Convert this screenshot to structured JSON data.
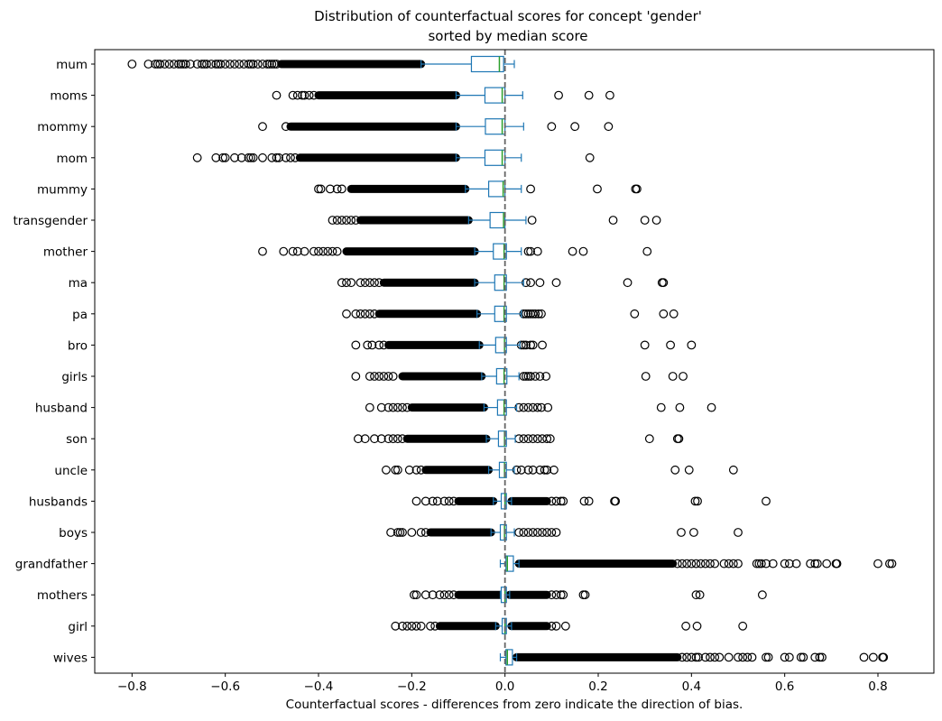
{
  "chart_data": {
    "type": "boxplot",
    "orientation": "horizontal",
    "title": "Distribution of counterfactual scores for concept 'gender'",
    "subtitle": "sorted by median score",
    "xlabel": "Counterfactual scores - differences from zero indicate the direction of bias.",
    "ylabel": "",
    "xlim": [
      -0.88,
      0.92
    ],
    "xticks": [
      -0.8,
      -0.6,
      -0.4,
      -0.2,
      0.0,
      0.2,
      0.4,
      0.6,
      0.8
    ],
    "xtick_labels": [
      "−0.8",
      "−0.6",
      "−0.4",
      "−0.2",
      "0.0",
      "0.2",
      "0.4",
      "0.6",
      "0.8"
    ],
    "reference_line": 0.0,
    "grid": false,
    "colors": {
      "box": "#1f77b4",
      "median": "#2ca02c",
      "reference": "#666666",
      "flier": "#000000"
    },
    "categories": [
      "mum",
      "moms",
      "mommy",
      "mom",
      "mummy",
      "transgender",
      "mother",
      "ma",
      "pa",
      "bro",
      "girls",
      "husband",
      "son",
      "uncle",
      "husbands",
      "boys",
      "grandfather",
      "mothers",
      "girl",
      "wives"
    ],
    "series": [
      {
        "category": "mum",
        "whislo": -0.18,
        "q1": -0.072,
        "median": -0.012,
        "q3": -0.003,
        "whishi": 0.02,
        "dense_low": [
          -0.48,
          -0.18
        ],
        "dense_high": null,
        "fliers": [
          -0.8,
          -0.765,
          -0.75,
          -0.745,
          -0.74,
          -0.73,
          -0.72,
          -0.71,
          -0.7,
          -0.695,
          -0.69,
          -0.685,
          -0.675,
          -0.66,
          -0.65,
          -0.645,
          -0.64,
          -0.63,
          -0.62,
          -0.615,
          -0.61,
          -0.6,
          -0.59,
          -0.58,
          -0.57,
          -0.56,
          -0.55,
          -0.545,
          -0.54,
          -0.53,
          -0.52,
          -0.51,
          -0.505,
          -0.5,
          -0.495,
          -0.49
        ]
      },
      {
        "category": "moms",
        "whislo": -0.105,
        "q1": -0.043,
        "median": -0.006,
        "q3": 0.0,
        "whishi": 0.038,
        "dense_low": [
          -0.4,
          -0.105
        ],
        "dense_high": null,
        "fliers": [
          -0.49,
          -0.455,
          -0.445,
          -0.435,
          -0.43,
          -0.42,
          -0.41,
          0.115,
          0.18,
          0.225
        ]
      },
      {
        "category": "mommy",
        "whislo": -0.105,
        "q1": -0.042,
        "median": -0.006,
        "q3": 0.0,
        "whishi": 0.04,
        "dense_low": [
          -0.46,
          -0.105
        ],
        "dense_high": null,
        "fliers": [
          -0.52,
          -0.47,
          0.1,
          0.15,
          0.222
        ]
      },
      {
        "category": "mom",
        "whislo": -0.105,
        "q1": -0.043,
        "median": -0.006,
        "q3": 0.0,
        "whishi": 0.035,
        "dense_low": [
          -0.44,
          -0.105
        ],
        "dense_high": null,
        "fliers": [
          -0.66,
          -0.62,
          -0.605,
          -0.6,
          -0.58,
          -0.565,
          -0.55,
          -0.545,
          -0.54,
          -0.52,
          -0.5,
          -0.49,
          -0.485,
          -0.47,
          -0.46,
          -0.45,
          0.182
        ]
      },
      {
        "category": "mummy",
        "whislo": -0.085,
        "q1": -0.035,
        "median": -0.004,
        "q3": 0.0,
        "whishi": 0.035,
        "dense_low": [
          -0.33,
          -0.085
        ],
        "dense_high": null,
        "fliers": [
          -0.4,
          -0.395,
          -0.375,
          -0.36,
          -0.35,
          0.055,
          0.198,
          0.28,
          0.283
        ]
      },
      {
        "category": "transgender",
        "whislo": -0.078,
        "q1": -0.032,
        "median": -0.003,
        "q3": 0.0,
        "whishi": 0.045,
        "dense_low": [
          -0.31,
          -0.078
        ],
        "dense_high": null,
        "fliers": [
          -0.37,
          -0.36,
          -0.35,
          -0.34,
          -0.33,
          -0.32,
          0.058,
          0.232,
          0.3,
          0.325
        ]
      },
      {
        "category": "mother",
        "whislo": -0.065,
        "q1": -0.025,
        "median": -0.002,
        "q3": 0.003,
        "whishi": 0.035,
        "dense_low": [
          -0.34,
          -0.065
        ],
        "dense_high": null,
        "fliers": [
          -0.52,
          -0.475,
          -0.455,
          -0.445,
          -0.43,
          -0.41,
          -0.4,
          -0.39,
          -0.38,
          -0.37,
          -0.36,
          0.05,
          0.055,
          0.07,
          0.145,
          0.168,
          0.305
        ]
      },
      {
        "category": "ma",
        "whislo": -0.065,
        "q1": -0.022,
        "median": -0.002,
        "q3": 0.003,
        "whishi": 0.04,
        "dense_low": [
          -0.26,
          -0.065
        ],
        "dense_high": null,
        "fliers": [
          -0.35,
          -0.34,
          -0.33,
          -0.31,
          -0.3,
          -0.29,
          -0.28,
          -0.27,
          0.045,
          0.055,
          0.075,
          0.11,
          0.263,
          0.337,
          0.34
        ]
      },
      {
        "category": "pa",
        "whislo": -0.06,
        "q1": -0.022,
        "median": -0.002,
        "q3": 0.003,
        "whishi": 0.035,
        "dense_low": [
          -0.27,
          -0.06
        ],
        "dense_high": null,
        "fliers": [
          -0.34,
          -0.32,
          -0.31,
          -0.3,
          -0.29,
          -0.28,
          0.04,
          0.045,
          0.05,
          0.055,
          0.06,
          0.065,
          0.072,
          0.078,
          0.278,
          0.34,
          0.362
        ]
      },
      {
        "category": "bro",
        "whislo": -0.055,
        "q1": -0.02,
        "median": -0.001,
        "q3": 0.003,
        "whishi": 0.032,
        "dense_low": [
          -0.25,
          -0.055
        ],
        "dense_high": null,
        "fliers": [
          -0.32,
          -0.295,
          -0.285,
          -0.27,
          -0.26,
          0.035,
          0.04,
          0.045,
          0.055,
          0.06,
          0.08,
          0.3,
          0.355,
          0.4
        ]
      },
      {
        "category": "girls",
        "whislo": -0.05,
        "q1": -0.018,
        "median": -0.002,
        "q3": 0.004,
        "whishi": 0.03,
        "dense_low": [
          -0.22,
          -0.05
        ],
        "dense_high": null,
        "fliers": [
          -0.32,
          -0.29,
          -0.28,
          -0.27,
          -0.26,
          -0.25,
          -0.24,
          0.04,
          0.045,
          0.05,
          0.055,
          0.065,
          0.075,
          0.088,
          0.302,
          0.36,
          0.382
        ]
      },
      {
        "category": "husband",
        "whislo": -0.045,
        "q1": -0.016,
        "median": -0.002,
        "q3": 0.003,
        "whishi": 0.025,
        "dense_low": [
          -0.2,
          -0.045
        ],
        "dense_high": null,
        "fliers": [
          -0.29,
          -0.265,
          -0.25,
          -0.24,
          -0.23,
          -0.22,
          -0.21,
          0.03,
          0.04,
          0.05,
          0.06,
          0.07,
          0.078,
          0.092,
          0.335,
          0.375,
          0.443
        ]
      },
      {
        "category": "son",
        "whislo": -0.04,
        "q1": -0.014,
        "median": -0.001,
        "q3": 0.003,
        "whishi": 0.022,
        "dense_low": [
          -0.21,
          -0.04
        ],
        "dense_high": null,
        "fliers": [
          -0.315,
          -0.3,
          -0.28,
          -0.265,
          -0.25,
          -0.24,
          -0.23,
          -0.22,
          0.03,
          0.04,
          0.05,
          0.06,
          0.07,
          0.08,
          0.09,
          0.097,
          0.31,
          0.37,
          0.373
        ]
      },
      {
        "category": "uncle",
        "whislo": -0.035,
        "q1": -0.012,
        "median": -0.001,
        "q3": 0.003,
        "whishi": 0.02,
        "dense_low": [
          -0.17,
          -0.035
        ],
        "dense_high": null,
        "fliers": [
          -0.255,
          -0.235,
          -0.23,
          -0.205,
          -0.19,
          -0.18,
          0.025,
          0.035,
          0.05,
          0.06,
          0.075,
          0.085,
          0.09,
          0.105,
          0.365,
          0.395,
          0.49
        ]
      },
      {
        "category": "husbands",
        "whislo": -0.025,
        "q1": -0.008,
        "median": 0.0,
        "q3": 0.003,
        "whishi": 0.014,
        "dense_low": [
          -0.1,
          -0.025
        ],
        "dense_high": [
          0.014,
          0.09
        ],
        "fliers": [
          -0.19,
          -0.17,
          -0.155,
          -0.145,
          -0.13,
          -0.12,
          -0.11,
          0.1,
          0.11,
          0.12,
          0.125,
          0.17,
          0.18,
          0.235,
          0.237,
          0.408,
          0.413,
          0.56
        ]
      },
      {
        "category": "boys",
        "whislo": -0.03,
        "q1": -0.01,
        "median": -0.001,
        "q3": 0.003,
        "whishi": 0.02,
        "dense_low": [
          -0.16,
          -0.03
        ],
        "dense_high": null,
        "fliers": [
          -0.245,
          -0.23,
          -0.225,
          -0.22,
          -0.2,
          -0.18,
          -0.17,
          0.03,
          0.04,
          0.05,
          0.06,
          0.07,
          0.08,
          0.09,
          0.1,
          0.11,
          0.378,
          0.405,
          0.5
        ]
      },
      {
        "category": "grandfather",
        "whislo": -0.01,
        "q1": 0.002,
        "median": 0.005,
        "q3": 0.018,
        "whishi": 0.03,
        "dense_low": null,
        "dense_high": [
          0.03,
          0.36
        ],
        "fliers": [
          0.37,
          0.38,
          0.39,
          0.4,
          0.41,
          0.42,
          0.43,
          0.44,
          0.45,
          0.47,
          0.48,
          0.49,
          0.5,
          0.54,
          0.545,
          0.55,
          0.56,
          0.575,
          0.6,
          0.61,
          0.625,
          0.655,
          0.665,
          0.67,
          0.69,
          0.71,
          0.712,
          0.8,
          0.825,
          0.83
        ]
      },
      {
        "category": "mothers",
        "whislo": -0.01,
        "q1": -0.008,
        "median": 0.0,
        "q3": 0.003,
        "whishi": 0.01,
        "dense_low": [
          -0.1,
          -0.01
        ],
        "dense_high": [
          0.01,
          0.09
        ],
        "fliers": [
          -0.195,
          -0.19,
          -0.17,
          -0.155,
          -0.14,
          -0.13,
          -0.12,
          -0.11,
          0.1,
          0.11,
          0.12,
          0.125,
          0.168,
          0.172,
          0.41,
          0.418,
          0.552
        ]
      },
      {
        "category": "girl",
        "whislo": -0.02,
        "q1": -0.006,
        "median": 0.0,
        "q3": 0.003,
        "whishi": 0.014,
        "dense_low": [
          -0.14,
          -0.02
        ],
        "dense_high": [
          0.014,
          0.09
        ],
        "fliers": [
          -0.235,
          -0.22,
          -0.21,
          -0.2,
          -0.19,
          -0.18,
          -0.16,
          -0.15,
          0.1,
          0.11,
          0.13,
          0.388,
          0.412,
          0.51
        ]
      },
      {
        "category": "wives",
        "whislo": -0.01,
        "q1": 0.002,
        "median": 0.005,
        "q3": 0.016,
        "whishi": 0.025,
        "dense_low": null,
        "dense_high": [
          0.025,
          0.37
        ],
        "fliers": [
          0.38,
          0.39,
          0.4,
          0.41,
          0.415,
          0.43,
          0.44,
          0.45,
          0.46,
          0.48,
          0.5,
          0.51,
          0.52,
          0.53,
          0.56,
          0.565,
          0.6,
          0.61,
          0.635,
          0.64,
          0.665,
          0.675,
          0.68,
          0.77,
          0.79,
          0.81,
          0.812
        ]
      }
    ]
  }
}
